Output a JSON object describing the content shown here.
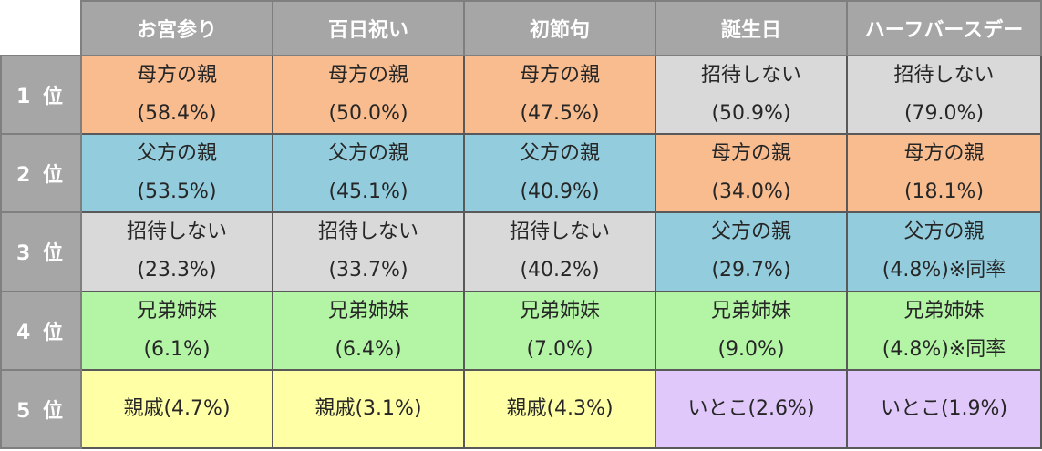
{
  "colors": {
    "header_bg": "#a6a6a6",
    "mother_side": "#f8bc8f",
    "father_side": "#93cddd",
    "not_invited": "#d9d9d9",
    "siblings": "#b3f5a5",
    "relatives": "#ffffa6",
    "cousins": "#e1c8fb"
  },
  "columns": [
    "お宮参り",
    "百日祝い",
    "初節句",
    "誕生日",
    "ハーフバースデー"
  ],
  "rows": [
    {
      "rank": "1 位",
      "cells": [
        {
          "name": "母方の親",
          "pct": "(58.4%)",
          "color": "mother"
        },
        {
          "name": "母方の親",
          "pct": "(50.0%)",
          "color": "mother"
        },
        {
          "name": "母方の親",
          "pct": "(47.5%)",
          "color": "mother"
        },
        {
          "name": "招待しない",
          "pct": "(50.9%)",
          "color": "none"
        },
        {
          "name": "招待しない",
          "pct": "(79.0%)",
          "color": "none"
        }
      ]
    },
    {
      "rank": "2 位",
      "cells": [
        {
          "name": "父方の親",
          "pct": "(53.5%)",
          "color": "father"
        },
        {
          "name": "父方の親",
          "pct": "(45.1%)",
          "color": "father"
        },
        {
          "name": "父方の親",
          "pct": "(40.9%)",
          "color": "father"
        },
        {
          "name": "母方の親",
          "pct": "(34.0%)",
          "color": "mother"
        },
        {
          "name": "母方の親",
          "pct": "(18.1%)",
          "color": "mother"
        }
      ]
    },
    {
      "rank": "3 位",
      "cells": [
        {
          "name": "招待しない",
          "pct": "(23.3%)",
          "color": "none"
        },
        {
          "name": "招待しない",
          "pct": "(33.7%)",
          "color": "none"
        },
        {
          "name": "招待しない",
          "pct": "(40.2%)",
          "color": "none"
        },
        {
          "name": "父方の親",
          "pct": "(29.7%)",
          "color": "father"
        },
        {
          "name": "父方の親",
          "pct": "(4.8%)※同率",
          "color": "father"
        }
      ]
    },
    {
      "rank": "4 位",
      "cells": [
        {
          "name": "兄弟姉妹",
          "pct": "(6.1%)",
          "color": "sib"
        },
        {
          "name": "兄弟姉妹",
          "pct": "(6.4%)",
          "color": "sib"
        },
        {
          "name": "兄弟姉妹",
          "pct": "(7.0%)",
          "color": "sib"
        },
        {
          "name": "兄弟姉妹",
          "pct": "(9.0%)",
          "color": "sib"
        },
        {
          "name": "兄弟姉妹",
          "pct": "(4.8%)※同率",
          "color": "sib"
        }
      ]
    },
    {
      "rank": "5 位",
      "cells": [
        {
          "text": "親戚(4.7%)",
          "color": "rel"
        },
        {
          "text": "親戚(3.1%)",
          "color": "rel"
        },
        {
          "text": "親戚(4.3%)",
          "color": "rel"
        },
        {
          "text": "いとこ(2.6%)",
          "color": "cousin"
        },
        {
          "text": "いとこ(1.9%)",
          "color": "cousin"
        }
      ]
    }
  ]
}
